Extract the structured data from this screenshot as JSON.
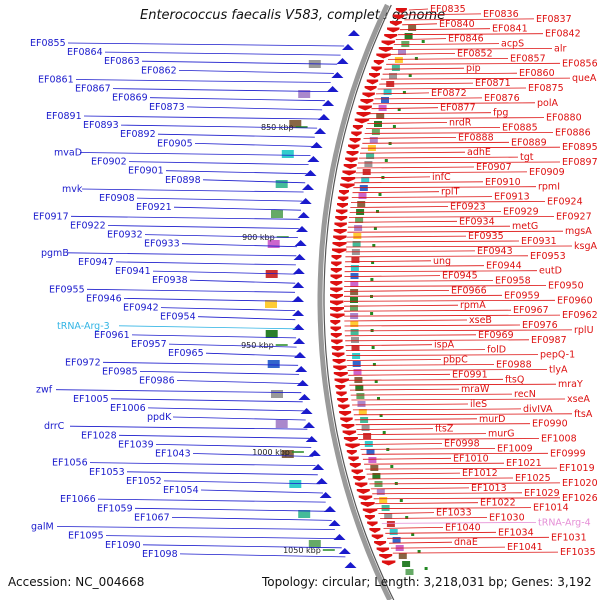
{
  "title": "Enterococcus faecalis V583, complete genome",
  "accession": "Accession: NC_004668",
  "summary": "Topology: circular; Length: 3,218,031 bp; Genes: 3,192",
  "colors": {
    "minus": "#1a1acc",
    "plus": "#dd1111",
    "trna_minus": "#33b5e5",
    "trna_plus": "#e58fd6"
  },
  "ticks": [
    "850 kbp",
    "900 kbp",
    "950 kbp",
    "1000 kbp",
    "1050 kbp"
  ],
  "labels_minus": [
    "EF0855",
    "EF0864",
    "EF0863",
    "EF0862",
    "EF0861",
    "EF0867",
    "EF0869",
    "EF0873",
    "EF0891",
    "EF0893",
    "EF0892",
    "EF0905",
    "mvaD",
    "EF0902",
    "EF0901",
    "EF0898",
    "mvk",
    "EF0908",
    "EF0921",
    "EF0917",
    "EF0922",
    "EF0932",
    "EF0933",
    "pgmB",
    "EF0947",
    "EF0941",
    "EF0938",
    "EF0955",
    "EF0946",
    "EF0942",
    "EF0954",
    "tRNA-Arg-3",
    "EF0961",
    "EF0957",
    "EF0965",
    "EF0972",
    "EF0985",
    "EF0986",
    "zwf",
    "EF1005",
    "EF1006",
    "ppdK",
    "drrC",
    "EF1028",
    "EF1039",
    "EF1043",
    "EF1056",
    "EF1053",
    "EF1052",
    "EF1054",
    "EF1066",
    "EF1059",
    "EF1067",
    "galM",
    "EF1095",
    "EF1090",
    "EF1098"
  ],
  "labels_plus": [
    "EF0835",
    "EF0836",
    "EF0837",
    "EF0840",
    "EF0841",
    "EF0842",
    "EF0846",
    "acpS",
    "alr",
    "EF0852",
    "EF0857",
    "EF0856",
    "pip",
    "EF0860",
    "queA",
    "EF0871",
    "EF0875",
    "EF0872",
    "EF0876",
    "polA",
    "EF0877",
    "fpg",
    "EF0880",
    "nrdR",
    "EF0885",
    "EF0886",
    "EF0888",
    "EF0889",
    "EF0895",
    "adhE",
    "tgt",
    "EF0897",
    "EF0907",
    "EF0909",
    "infC",
    "EF0910",
    "rpmI",
    "rplT",
    "EF0913",
    "EF0924",
    "EF0923",
    "EF0929",
    "EF0927",
    "EF0934",
    "metG",
    "mgsA",
    "EF0935",
    "EF0931",
    "ksgA",
    "EF0943",
    "EF0953",
    "ung",
    "EF0944",
    "eutD",
    "EF0945",
    "EF0958",
    "EF0950",
    "EF0966",
    "EF0959",
    "EF0960",
    "rpmA",
    "EF0967",
    "EF0962",
    "xseB",
    "EF0976",
    "rplU",
    "EF0969",
    "EF0987",
    "ispA",
    "folD",
    "pepQ-1",
    "pbpC",
    "EF0988",
    "tlyA",
    "EF0991",
    "ftsQ",
    "mraY",
    "mraW",
    "recN",
    "xseA",
    "ileS",
    "divIVA",
    "ftsA",
    "murD",
    "EF0990",
    "ftsZ",
    "murG",
    "EF1008",
    "EF0998",
    "EF1009",
    "EF0999",
    "EF1010",
    "EF1021",
    "EF1019",
    "EF1012",
    "EF1025",
    "EF1020",
    "EF1013",
    "EF1029",
    "EF1026",
    "EF1022",
    "EF1014",
    "EF1033",
    "EF1030",
    "tRNA-Arg-4",
    "EF1040",
    "EF1034",
    "EF1031",
    "dnaE",
    "EF1041",
    "EF1035"
  ]
}
